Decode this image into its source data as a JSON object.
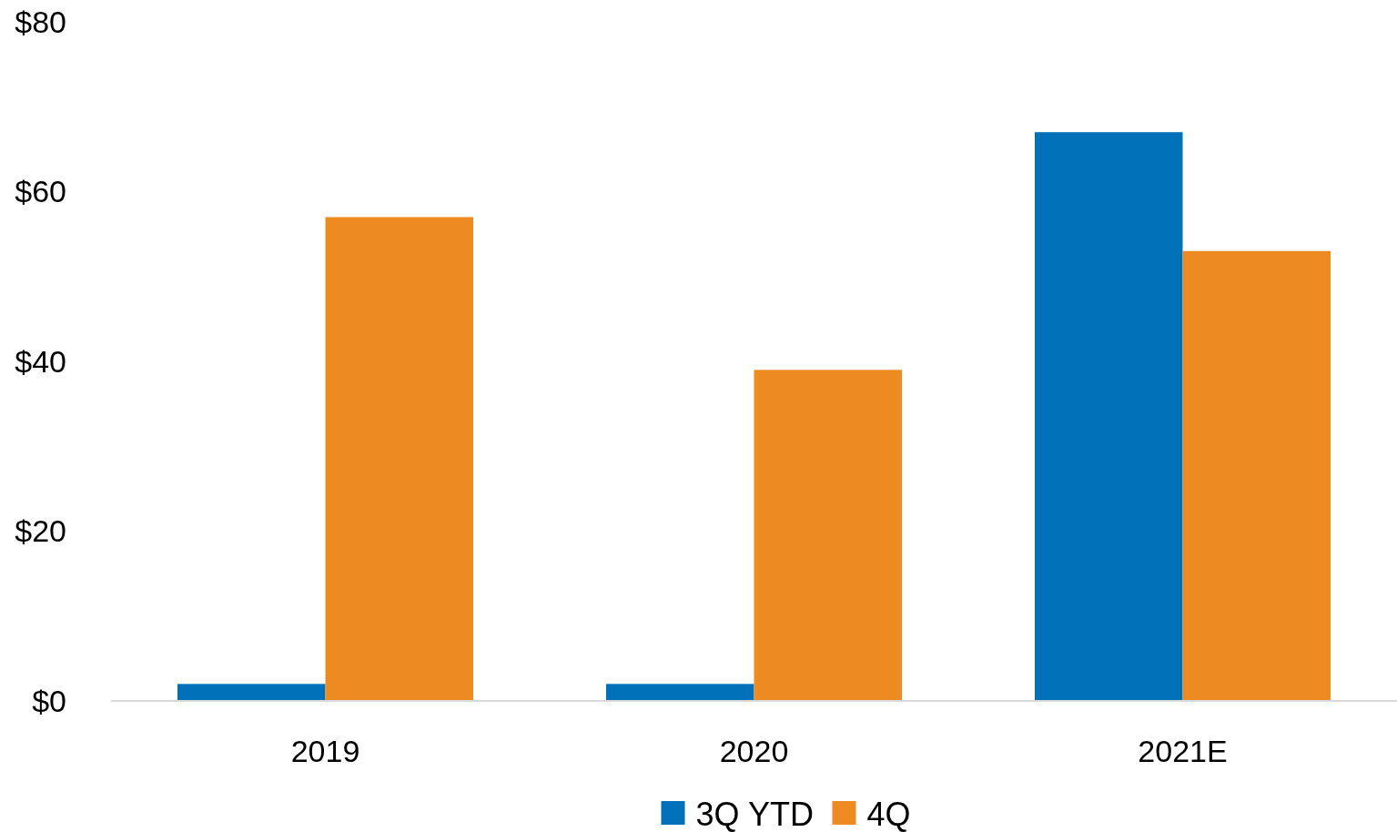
{
  "chart_data": {
    "type": "bar",
    "categories": [
      "2019",
      "2020",
      "2021E"
    ],
    "series": [
      {
        "name": "3Q YTD",
        "color": "#0070b8",
        "values": [
          2,
          2,
          67
        ]
      },
      {
        "name": "4Q",
        "color": "#ee8a22",
        "values": [
          57,
          39,
          53
        ]
      }
    ],
    "ylim": [
      0,
      80
    ],
    "yticks": [
      {
        "value": 0,
        "label": "$0"
      },
      {
        "value": 20,
        "label": "$20"
      },
      {
        "value": 40,
        "label": "$40"
      },
      {
        "value": 60,
        "label": "$60"
      },
      {
        "value": 80,
        "label": "$80"
      }
    ],
    "grid": false,
    "legend": "bottom"
  }
}
